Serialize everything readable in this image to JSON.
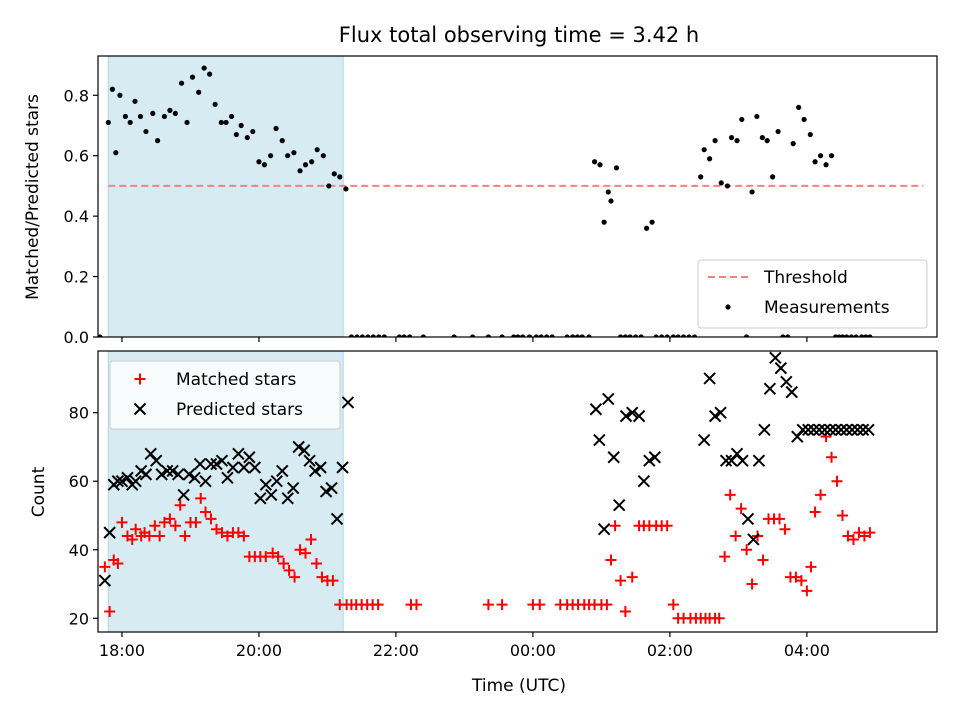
{
  "chart_data": [
    {
      "type": "scatter",
      "title": "Flux total observing time = 3.42 h",
      "xlabel": "",
      "ylabel": "Matched/Predicted stars",
      "xlim": [
        -0.35,
        11.9
      ],
      "ylim": [
        0.0,
        0.93
      ],
      "yticks": [
        0.0,
        0.2,
        0.4,
        0.6,
        0.8
      ],
      "ytick_labels": [
        "0.0",
        "0.2",
        "0.4",
        "0.6",
        "0.8"
      ],
      "shaded_interval": [
        -0.2,
        3.23
      ],
      "grid": false,
      "legend_position": "lower right",
      "series": [
        {
          "name": "Threshold",
          "kind": "dashed-line",
          "color": "#ff7f7f",
          "x": [
            -0.2,
            11.7
          ],
          "y": [
            0.5,
            0.5
          ]
        },
        {
          "name": "Measurements",
          "kind": "points",
          "color": "#000000",
          "x": [
            -0.32,
            -0.2,
            -0.14,
            -0.09,
            -0.03,
            0.05,
            0.12,
            0.19,
            0.27,
            0.35,
            0.45,
            0.52,
            0.62,
            0.7,
            0.78,
            0.87,
            0.95,
            1.03,
            1.12,
            1.2,
            1.28,
            1.36,
            1.45,
            1.52,
            1.6,
            1.67,
            1.74,
            1.83,
            1.91,
            2.0,
            2.08,
            2.17,
            2.25,
            2.34,
            2.42,
            2.51,
            2.6,
            2.68,
            2.77,
            2.85,
            2.94,
            3.02,
            3.1,
            3.18,
            3.27,
            3.35,
            3.43,
            3.51,
            3.59,
            3.67,
            3.75,
            3.83,
            4.05,
            4.12,
            4.2,
            4.4,
            4.85,
            5.12,
            5.35,
            5.55,
            5.72,
            5.78,
            5.85,
            5.95,
            6.05,
            6.12,
            6.2,
            6.28,
            6.5,
            6.58,
            6.65,
            6.72,
            6.82,
            6.9,
            6.98,
            7.04,
            7.1,
            7.14,
            7.22,
            7.28,
            7.35,
            7.42,
            7.5,
            7.58,
            7.66,
            7.74,
            7.8,
            7.88,
            7.96,
            8.05,
            8.12,
            8.2,
            8.28,
            8.36,
            8.45,
            8.5,
            8.58,
            8.66,
            8.75,
            8.84,
            8.9,
            8.98,
            9.05,
            9.12,
            9.2,
            9.27,
            9.35,
            9.42,
            9.5,
            9.58,
            9.65,
            9.72,
            9.8,
            9.88,
            9.96,
            10.05,
            10.12,
            10.2,
            10.28,
            10.36,
            10.42,
            10.47,
            10.52,
            10.58,
            10.65,
            10.72,
            10.8,
            10.86,
            10.92
          ],
          "y": [
            0.0,
            0.71,
            0.82,
            0.61,
            0.8,
            0.73,
            0.71,
            0.78,
            0.73,
            0.68,
            0.74,
            0.65,
            0.73,
            0.75,
            0.74,
            0.84,
            0.71,
            0.86,
            0.81,
            0.89,
            0.87,
            0.77,
            0.71,
            0.71,
            0.73,
            0.67,
            0.7,
            0.66,
            0.68,
            0.58,
            0.57,
            0.6,
            0.69,
            0.65,
            0.6,
            0.61,
            0.55,
            0.57,
            0.58,
            0.62,
            0.6,
            0.5,
            0.54,
            0.53,
            0.49,
            0.0,
            0.0,
            0.0,
            0.0,
            0.0,
            0.0,
            0.0,
            0.0,
            0.0,
            0.0,
            0.0,
            0.0,
            0.0,
            0.0,
            0.0,
            0.0,
            0.0,
            0.0,
            0.0,
            0.0,
            0.0,
            0.0,
            0.0,
            0.0,
            0.0,
            0.0,
            0.0,
            0.0,
            0.58,
            0.57,
            0.38,
            0.48,
            0.45,
            0.56,
            0.0,
            0.0,
            0.0,
            0.0,
            0.0,
            0.36,
            0.38,
            0.0,
            0.0,
            0.0,
            0.0,
            0.0,
            0.0,
            0.0,
            0.0,
            0.53,
            0.62,
            0.59,
            0.65,
            0.51,
            0.5,
            0.66,
            0.65,
            0.72,
            0.0,
            0.48,
            0.73,
            0.66,
            0.65,
            0.53,
            0.68,
            0.0,
            0.0,
            0.64,
            0.76,
            0.72,
            0.67,
            0.58,
            0.6,
            0.57,
            0.6,
            0.0,
            0.0,
            0.0,
            0.0,
            0.0,
            0.0,
            0.0,
            0.0,
            0.0
          ]
        }
      ]
    },
    {
      "type": "scatter",
      "title": "",
      "xlabel": "Time (UTC)",
      "ylabel": "Count",
      "xlim": [
        -0.35,
        11.9
      ],
      "ylim": [
        16,
        98
      ],
      "yticks": [
        20,
        40,
        60,
        80
      ],
      "ytick_labels": [
        "20",
        "40",
        "60",
        "80"
      ],
      "xtick_positions": [
        0,
        2,
        4,
        6,
        8,
        10
      ],
      "xtick_labels": [
        "18:00",
        "20:00",
        "22:00",
        "00:00",
        "02:00",
        "04:00"
      ],
      "shaded_interval": [
        -0.2,
        3.23
      ],
      "grid": false,
      "legend_position": "upper left",
      "series": [
        {
          "name": "Matched stars",
          "marker": "plus",
          "color": "#ff0000",
          "x": [
            -0.25,
            -0.18,
            -0.12,
            -0.06,
            0.0,
            0.08,
            0.15,
            0.2,
            0.28,
            0.33,
            0.4,
            0.48,
            0.55,
            0.62,
            0.7,
            0.78,
            0.85,
            0.92,
            1.0,
            1.08,
            1.15,
            1.22,
            1.3,
            1.38,
            1.46,
            1.54,
            1.62,
            1.7,
            1.78,
            1.86,
            1.94,
            2.02,
            2.1,
            2.2,
            2.28,
            2.36,
            2.44,
            2.52,
            2.6,
            2.68,
            2.76,
            2.84,
            2.92,
            3.0,
            3.08,
            3.18,
            3.28,
            3.35,
            3.42,
            3.5,
            3.58,
            3.66,
            3.74,
            4.22,
            4.3,
            5.35,
            5.55,
            6.0,
            6.1,
            6.4,
            6.5,
            6.58,
            6.66,
            6.75,
            6.82,
            6.9,
            7.0,
            7.08,
            7.14,
            7.2,
            7.28,
            7.35,
            7.45,
            7.55,
            7.62,
            7.7,
            7.8,
            7.88,
            7.96,
            8.05,
            8.12,
            8.2,
            8.3,
            8.38,
            8.45,
            8.52,
            8.58,
            8.66,
            8.72,
            8.8,
            8.88,
            8.96,
            9.04,
            9.12,
            9.2,
            9.28,
            9.36,
            9.44,
            9.52,
            9.6,
            9.68,
            9.76,
            9.84,
            9.92,
            10.0,
            10.06,
            10.12,
            10.2,
            10.28,
            10.36,
            10.44,
            10.52,
            10.6,
            10.68,
            10.76,
            10.84,
            10.92
          ],
          "y": [
            35,
            22,
            37,
            36,
            48,
            44,
            43,
            46,
            44,
            45,
            44,
            47,
            44,
            48,
            49,
            47,
            53,
            44,
            48,
            48,
            55,
            51,
            49,
            46,
            45,
            44,
            45,
            45,
            44,
            38,
            38,
            38,
            38,
            39,
            38,
            36,
            34,
            32,
            40,
            39,
            43,
            36,
            32,
            31,
            31,
            24,
            24,
            24,
            24,
            24,
            24,
            24,
            24,
            24,
            24,
            24,
            24,
            24,
            24,
            24,
            24,
            24,
            24,
            24,
            24,
            24,
            24,
            24,
            37,
            47,
            31,
            22,
            32,
            47,
            47,
            47,
            47,
            47,
            47,
            24,
            20,
            20,
            20,
            20,
            20,
            20,
            20,
            20,
            20,
            38,
            56,
            44,
            52,
            40,
            30,
            44,
            37,
            49,
            49,
            49,
            46,
            32,
            32,
            31,
            28,
            35,
            51,
            56,
            73,
            67,
            60,
            50,
            44,
            43,
            45,
            44,
            45
          ],
          "x_note": ""
        },
        {
          "name": "Predicted stars",
          "marker": "x",
          "color": "#000000",
          "x": [
            -0.25,
            -0.18,
            -0.12,
            -0.06,
            0.0,
            0.08,
            0.15,
            0.2,
            0.28,
            0.35,
            0.42,
            0.5,
            0.58,
            0.66,
            0.74,
            0.82,
            0.9,
            0.98,
            1.06,
            1.14,
            1.22,
            1.3,
            1.38,
            1.46,
            1.54,
            1.62,
            1.7,
            1.78,
            1.86,
            1.94,
            2.02,
            2.1,
            2.18,
            2.26,
            2.34,
            2.42,
            2.5,
            2.58,
            2.66,
            2.74,
            2.82,
            2.9,
            2.98,
            3.06,
            3.14,
            3.22,
            3.3,
            6.92,
            6.97,
            7.04,
            7.1,
            7.18,
            7.26,
            7.36,
            7.45,
            7.55,
            7.62,
            7.7,
            7.78,
            8.5,
            8.58,
            8.66,
            8.74,
            8.82,
            8.9,
            8.98,
            9.06,
            9.14,
            9.22,
            9.3,
            9.38,
            9.46,
            9.54,
            9.62,
            9.7,
            9.78,
            9.86,
            9.94,
            10.02,
            10.1,
            10.18,
            10.26,
            10.34,
            10.42,
            10.5,
            10.58,
            10.66,
            10.74,
            10.82,
            10.9
          ],
          "y": [
            31,
            45,
            59,
            60,
            60,
            61,
            59,
            60,
            63,
            62,
            68,
            66,
            62,
            63,
            63,
            62,
            56,
            62,
            61,
            65,
            60,
            65,
            65,
            66,
            61,
            64,
            68,
            64,
            67,
            64,
            55,
            59,
            56,
            60,
            63,
            55,
            58,
            70,
            69,
            66,
            63,
            64,
            57,
            58,
            49,
            64,
            83,
            81,
            72,
            46,
            84,
            67,
            53,
            79,
            80,
            79,
            60,
            66,
            67,
            72,
            90,
            79,
            80,
            66,
            66,
            68,
            66,
            49,
            43,
            66,
            75,
            87,
            96,
            93,
            89,
            86,
            73,
            75,
            75,
            75,
            75,
            75,
            75,
            75,
            75,
            75,
            75,
            75,
            75,
            75
          ],
          "x_note": ""
        }
      ]
    }
  ]
}
